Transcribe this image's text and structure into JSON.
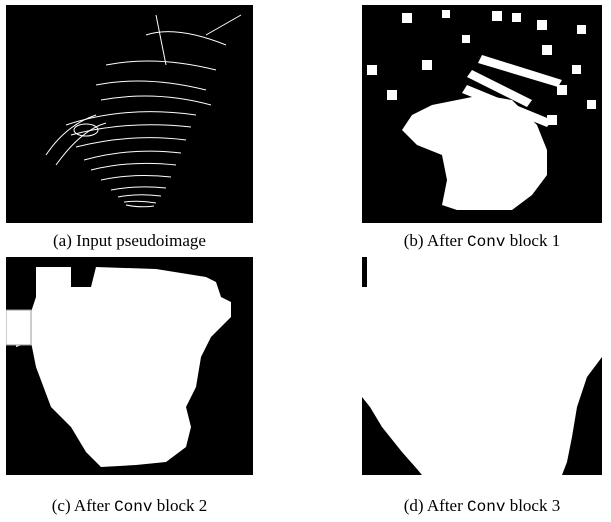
{
  "figure": {
    "captions": [
      {
        "text": "(a) Input pseudoimage"
      },
      {
        "before": "(b) After",
        "code": "Conv",
        "after": "block 1"
      },
      {
        "before": "(c) After",
        "code": "Conv",
        "after": "block 2"
      },
      {
        "before": "(d) After",
        "code": "Conv",
        "after": "block 3"
      }
    ]
  }
}
